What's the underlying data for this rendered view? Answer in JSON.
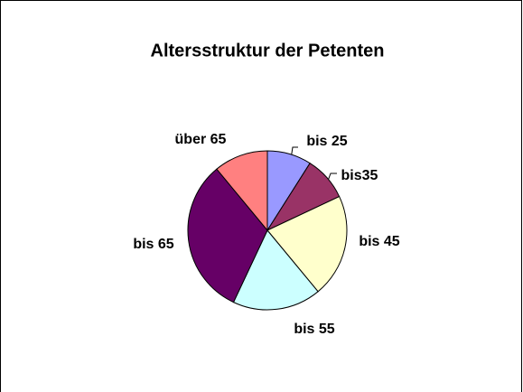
{
  "chart_data": {
    "type": "pie",
    "title": "Altersstruktur der Petenten",
    "categories": [
      "bis 25",
      "bis35",
      "bis 45",
      "bis 55",
      "bis 65",
      "über 65"
    ],
    "values": [
      9,
      9,
      21,
      18,
      32,
      11
    ],
    "colors": [
      "#9999ff",
      "#993366",
      "#ffffcc",
      "#ccffff",
      "#660066",
      "#ff8080"
    ]
  }
}
